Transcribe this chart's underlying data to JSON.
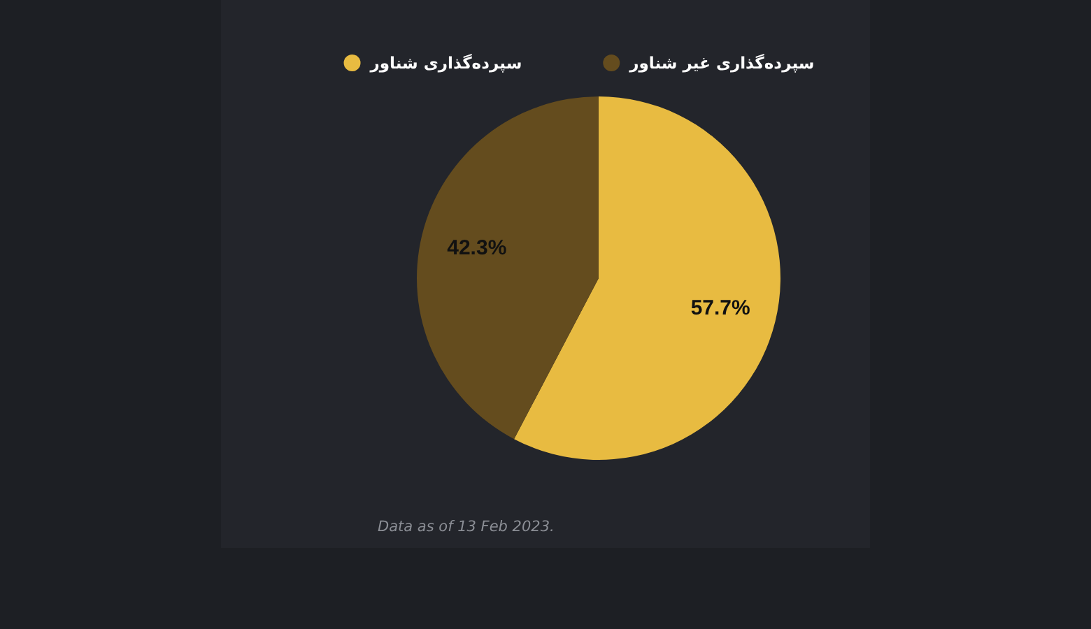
{
  "chart_data": {
    "type": "pie",
    "categories": [
      "سپرده‌گذاری شناور",
      "سپرده‌گذاری غیر شناور"
    ],
    "values": [
      57.7,
      42.3
    ],
    "colors": [
      "#e8bb41",
      "#644c1e"
    ],
    "value_labels": [
      "57.7%",
      "42.3%"
    ],
    "legend": "top",
    "annotations": [
      "Data as of 13 Feb 2023."
    ]
  }
}
